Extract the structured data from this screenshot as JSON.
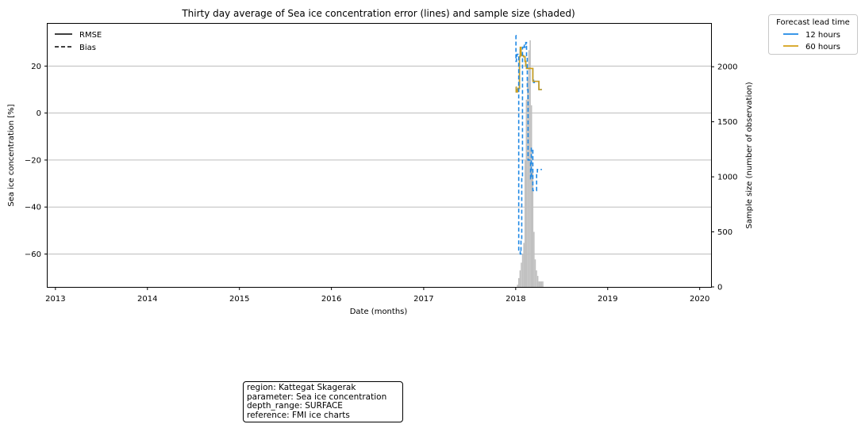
{
  "chart_data": {
    "type": "line",
    "title": "Thirty day average of Sea ice concentration error (lines) and sample size (shaded)",
    "xlabel": "Date (months)",
    "ylabel": "Sea ice concentration [%]",
    "y2label": "Sample size (number of observation)",
    "xlim": [
      "2012-12-01",
      "2020-02-15"
    ],
    "ylim": [
      -74,
      38
    ],
    "y2lim": [
      0,
      2390
    ],
    "x_ticks": [
      "2013",
      "2014",
      "2015",
      "2016",
      "2017",
      "2018",
      "2019",
      "2020"
    ],
    "y_ticks": [
      20,
      0,
      -20,
      -40,
      -60
    ],
    "y2_ticks": [
      2000,
      1500,
      1000,
      500,
      0
    ],
    "grid": "horizontal",
    "style_legend": {
      "placement": "top-left",
      "entries": [
        {
          "label": "RMSE",
          "style": "solid"
        },
        {
          "label": "Bias",
          "style": "dashed"
        }
      ]
    },
    "color_legend": {
      "title": "Forecast lead time",
      "placement": "outside top-right",
      "entries": [
        {
          "label": "12 hours",
          "color": "#1e88e5"
        },
        {
          "label": "60 hours",
          "color": "#d4a017"
        }
      ]
    },
    "series": [
      {
        "name": "12 hours",
        "metric": "RMSE",
        "color": "#1e88e5",
        "style": "solid",
        "x": [
          "2018-01-01",
          "2018-01-03",
          "2018-01-06",
          "2018-01-08",
          "2018-01-10",
          "2018-01-13",
          "2018-01-16",
          "2018-01-19",
          "2018-01-22",
          "2018-01-25",
          "2018-01-28",
          "2018-02-01",
          "2018-02-04",
          "2018-02-07",
          "2018-02-10",
          "2018-02-13",
          "2018-02-16",
          "2018-02-19",
          "2018-02-22",
          "2018-02-25",
          "2018-03-01",
          "2018-03-04",
          "2018-03-07",
          "2018-03-10",
          "2018-03-13",
          "2018-03-16",
          "2018-03-19",
          "2018-03-22",
          "2018-03-25",
          "2018-03-28",
          "2018-03-31",
          "2018-04-03",
          "2018-04-06",
          "2018-04-09",
          "2018-04-12",
          "2018-04-15"
        ],
        "values": [
          11,
          9,
          9.5,
          10,
          10.5,
          10.5,
          24,
          27,
          25,
          24.5,
          24.5,
          24,
          24,
          22,
          20,
          19,
          19,
          19,
          19,
          19,
          19,
          19,
          19,
          14,
          13,
          13.5,
          13.5,
          13.5,
          13.5,
          13.5,
          13.5,
          10,
          10,
          10,
          10,
          10
        ]
      },
      {
        "name": "60 hours",
        "metric": "RMSE",
        "color": "#d4a017",
        "style": "solid",
        "x": [
          "2018-01-01",
          "2018-01-03",
          "2018-01-06",
          "2018-01-08",
          "2018-01-10",
          "2018-01-13",
          "2018-01-16",
          "2018-01-19",
          "2018-01-22",
          "2018-01-25",
          "2018-01-28",
          "2018-02-01",
          "2018-02-04",
          "2018-02-07",
          "2018-02-10",
          "2018-02-13",
          "2018-02-16",
          "2018-02-19",
          "2018-02-22",
          "2018-02-25",
          "2018-03-01",
          "2018-03-04",
          "2018-03-07",
          "2018-03-10",
          "2018-03-13",
          "2018-03-16",
          "2018-03-19",
          "2018-03-22",
          "2018-03-25",
          "2018-03-28",
          "2018-03-31",
          "2018-04-03",
          "2018-04-06",
          "2018-04-09",
          "2018-04-12",
          "2018-04-15"
        ],
        "values": [
          11,
          9,
          9,
          9.5,
          10.5,
          10.5,
          24,
          28,
          25,
          24.5,
          24.5,
          24,
          24,
          22,
          20,
          19,
          19,
          19,
          19,
          19,
          19,
          19,
          19,
          13.5,
          13.5,
          13.5,
          13.5,
          13.5,
          13.5,
          13.5,
          13.5,
          10,
          10,
          10,
          10,
          10
        ]
      },
      {
        "name": "12 hours",
        "metric": "Bias",
        "color": "#1e88e5",
        "style": "dashed",
        "x": [
          "2018-01-01",
          "2018-01-02",
          "2018-01-04",
          "2018-01-06",
          "2018-01-08",
          "2018-01-10",
          "2018-01-13",
          "2018-01-16",
          "2018-01-19",
          "2018-01-22",
          "2018-01-25",
          "2018-01-28",
          "2018-02-01",
          "2018-02-04",
          "2018-02-07",
          "2018-02-10",
          "2018-02-13",
          "2018-02-16",
          "2018-02-19",
          "2018-02-22",
          "2018-02-25",
          "2018-03-01",
          "2018-03-04",
          "2018-03-07",
          "2018-03-10",
          "2018-03-13",
          "2018-03-16",
          "2018-03-19",
          "2018-03-22",
          "2018-03-25",
          "2018-03-28",
          "2018-03-31",
          "2018-04-03",
          "2018-04-06",
          "2018-04-09",
          "2018-04-12",
          "2018-04-15"
        ],
        "values": [
          33,
          22,
          23,
          25,
          25,
          24.5,
          -59,
          -59,
          -60,
          -54,
          -27,
          28,
          29,
          28,
          29,
          30,
          24,
          10,
          -20,
          -20,
          -20,
          -28,
          -15,
          -15,
          -33,
          -33,
          -33,
          -33,
          -33,
          -26,
          -24,
          -24,
          -24,
          -24,
          -24,
          -24,
          -24
        ]
      }
    ],
    "sample_size": {
      "color": "#c0c0c0",
      "x": [
        "2018-01-01",
        "2018-01-06",
        "2018-01-11",
        "2018-01-16",
        "2018-01-21",
        "2018-01-26",
        "2018-01-31",
        "2018-02-05",
        "2018-02-10",
        "2018-02-15",
        "2018-02-20",
        "2018-02-25",
        "2018-03-02",
        "2018-03-07",
        "2018-03-12",
        "2018-03-17",
        "2018-03-22",
        "2018-03-27",
        "2018-04-01",
        "2018-04-06",
        "2018-04-11",
        "2018-04-16",
        "2018-04-21"
      ],
      "values": [
        0,
        20,
        80,
        150,
        220,
        300,
        400,
        1150,
        1700,
        1900,
        2150,
        2240,
        1650,
        1050,
        500,
        250,
        150,
        100,
        50,
        50,
        50,
        50,
        0
      ]
    }
  },
  "info_box": {
    "line1": "region: Kattegat Skagerak",
    "line2": "parameter: Sea ice concentration",
    "line3": "depth_range: SURFACE",
    "line4": "reference: FMI ice charts"
  }
}
